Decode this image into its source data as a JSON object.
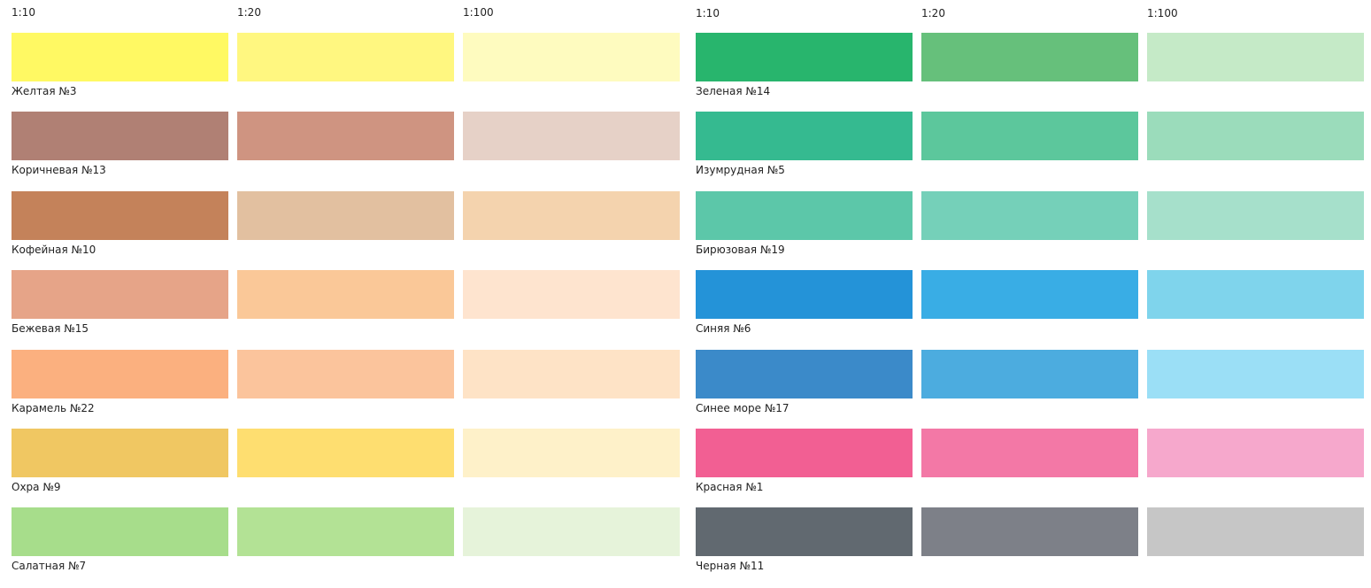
{
  "panels": [
    {
      "headers": [
        "1:10",
        "1:20",
        "1:100"
      ],
      "rows": [
        {
          "name": "Желтая №3",
          "colors": [
            "#fff963",
            "#fff780",
            "#fefbbf"
          ]
        },
        {
          "name": "Коричневая №13",
          "colors": [
            "#b08074",
            "#cf9481",
            "#e6d1c7"
          ]
        },
        {
          "name": "Кофейная №10",
          "colors": [
            "#c4825a",
            "#e2c0a0",
            "#f4d3ae"
          ]
        },
        {
          "name": "Бежевая №15",
          "colors": [
            "#e6a488",
            "#fac898",
            "#fee4cf"
          ]
        },
        {
          "name": "Карамель №22",
          "colors": [
            "#fbb07f",
            "#fbc49c",
            "#fee3c6"
          ]
        },
        {
          "name": "Охра №9",
          "colors": [
            "#f0c762",
            "#fede70",
            "#fef1c9"
          ]
        },
        {
          "name": "Салатная №7",
          "colors": [
            "#a7dd8b",
            "#b3e295",
            "#e6f3da"
          ]
        }
      ]
    },
    {
      "headers": [
        "1:10",
        "1:20",
        "1:100"
      ],
      "rows": [
        {
          "name": "Зеленая №14",
          "colors": [
            "#28b56d",
            "#66c07b",
            "#c5eac7"
          ]
        },
        {
          "name": "Изумрудная №5",
          "colors": [
            "#35ba90",
            "#5cc79c",
            "#9bdcbb"
          ]
        },
        {
          "name": "Бирюзовая №19",
          "colors": [
            "#5cc7a9",
            "#75d0b9",
            "#a6e0cb"
          ]
        },
        {
          "name": "Синяя №6",
          "colors": [
            "#2493d8",
            "#39ade5",
            "#7fd4ec"
          ]
        },
        {
          "name": "Синее море №17",
          "colors": [
            "#3b8ac9",
            "#4cacdf",
            "#9bdff6"
          ]
        },
        {
          "name": "Красная №1",
          "colors": [
            "#f25f93",
            "#f378a6",
            "#f6a8cc"
          ]
        },
        {
          "name": "Черная №11",
          "colors": [
            "#616970",
            "#7d8088",
            "#c6c6c6"
          ]
        }
      ]
    }
  ]
}
